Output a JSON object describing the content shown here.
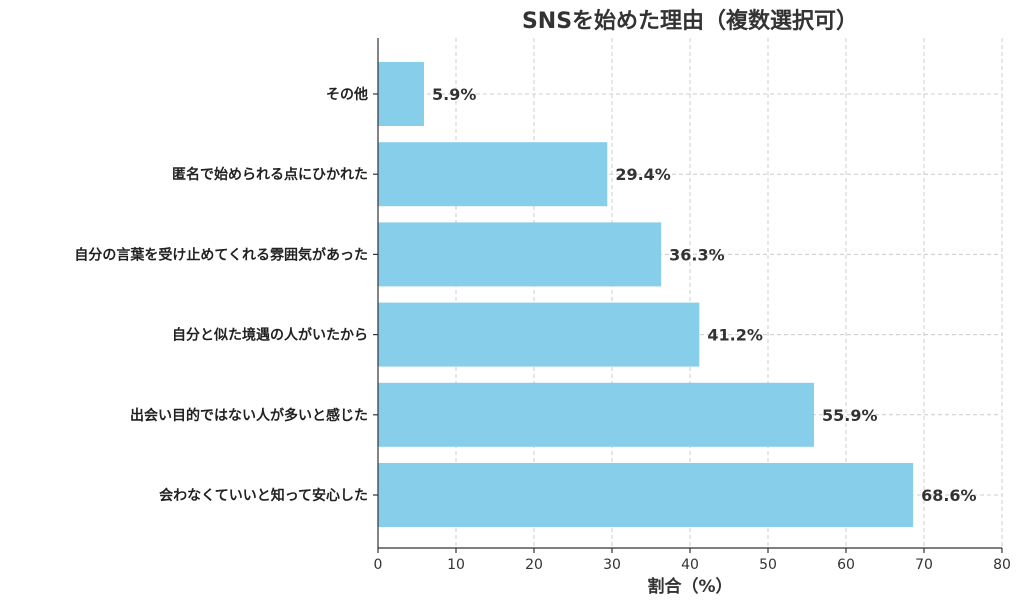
{
  "chart_data": {
    "type": "bar",
    "orientation": "horizontal",
    "title": "SNSを始めた理由（複数選択可）",
    "xlabel": "割合（%）",
    "ylabel": "",
    "xlim": [
      0,
      80
    ],
    "xticks": [
      0,
      10,
      20,
      30,
      40,
      50,
      60,
      70,
      80
    ],
    "grid": true,
    "bar_color": "#87CEEB",
    "categories": [
      "その他",
      "匿名で始められる点にひかれた",
      "自分の言葉を受け止めてくれる雰囲気があった",
      "自分と似た境遇の人がいたから",
      "出会い目的ではない人が多いと感じた",
      "会わなくていいと知って安心した"
    ],
    "values": [
      5.9,
      29.4,
      36.3,
      41.2,
      55.9,
      68.6
    ],
    "value_labels": [
      "5.9%",
      "29.4%",
      "36.3%",
      "41.2%",
      "55.9%",
      "68.6%"
    ]
  }
}
